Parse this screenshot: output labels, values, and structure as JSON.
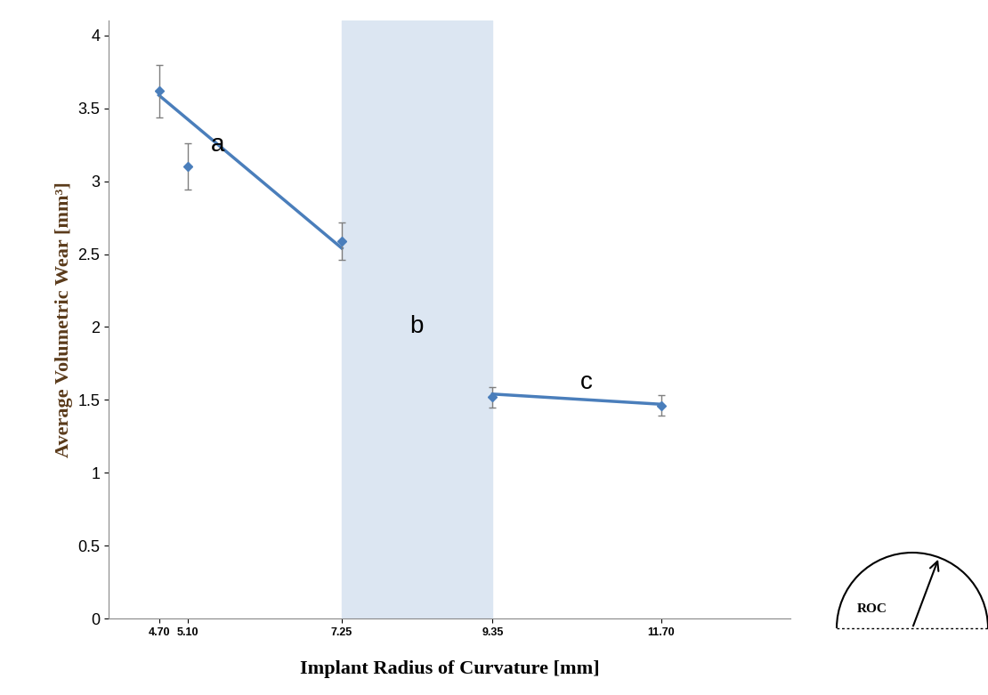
{
  "chart_data": {
    "type": "scatter",
    "x_label": "Implant Radius of Curvature [mm]",
    "y_label": "Average Volumetric Wear [mm³]",
    "x": [
      4.7,
      5.1,
      7.25,
      9.35,
      11.7
    ],
    "values": [
      3.62,
      3.1,
      2.59,
      1.52,
      1.46
    ],
    "errors": [
      0.18,
      0.16,
      0.13,
      0.07,
      0.07
    ],
    "color": "#4a7ebb",
    "marker": "diamond",
    "fit_lines": [
      {
        "label": "a",
        "x": [
          4.7,
          7.25
        ],
        "values": [
          3.59,
          2.54
        ],
        "label_x": 5.52,
        "label_y": 3.25
      },
      {
        "label": "c",
        "x": [
          9.35,
          11.7
        ],
        "values": [
          1.54,
          1.47
        ],
        "label_x": 10.66,
        "label_y": 1.62
      }
    ],
    "shaded_region": {
      "label": "b",
      "x": [
        7.25,
        9.35
      ],
      "label_x": 8.29,
      "label_y": 2.0
    },
    "inset_label": "ROC",
    "xlim": [
      4.0,
      13.5
    ],
    "xticks": [
      {
        "value": 4.7,
        "label": "4.70"
      },
      {
        "value": 5.1,
        "label": "5.10"
      },
      {
        "value": 7.25,
        "label": "7.25"
      },
      {
        "value": 9.35,
        "label": "9.35"
      },
      {
        "value": 11.7,
        "label": "11.70"
      }
    ],
    "ylim": [
      0,
      4.1
    ],
    "yticks": [
      0,
      0.5,
      1,
      1.5,
      2,
      2.5,
      3,
      3.5,
      4
    ],
    "grid": false
  }
}
